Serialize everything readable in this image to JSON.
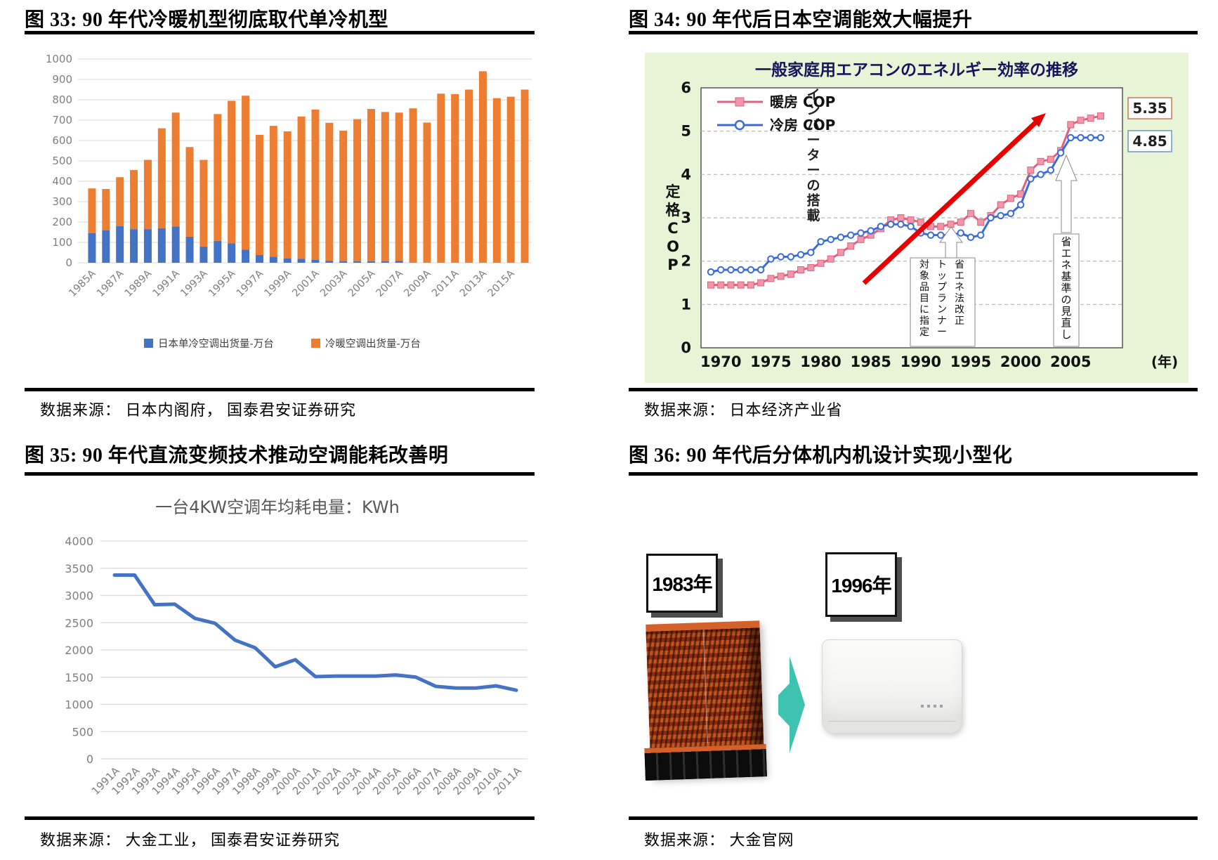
{
  "figures": {
    "fig33": {
      "title": "图 33:  90 年代冷暖机型彻底取代单冷机型",
      "source": "数据来源： 日本内阁府， 国泰君安证券研究"
    },
    "fig34": {
      "title": "图 34:  90 年代后日本空调能效大幅提升",
      "source": "数据来源： 日本经济产业省"
    },
    "fig35": {
      "title": "图 35:  90 年代直流变频技术推动空调能耗改善明",
      "source": "数据来源： 大金工业， 国泰君安证券研究"
    },
    "fig36": {
      "title": "图 36:  90 年代后分体机内机设计实现小型化",
      "source": "数据来源： 大金官网",
      "left_year": "1983年",
      "right_year": "1996年"
    }
  },
  "chart_data": [
    {
      "id": "chart33",
      "type": "bar",
      "stacked": true,
      "title": "",
      "categories": [
        "1985A",
        "1986A",
        "1987A",
        "1988A",
        "1989A",
        "1990A",
        "1991A",
        "1992A",
        "1993A",
        "1994A",
        "1995A",
        "1996A",
        "1997A",
        "1998A",
        "1999A",
        "2000A",
        "2001A",
        "2002A",
        "2003A",
        "2004A",
        "2005A",
        "2006A",
        "2007A",
        "2008A",
        "2009A",
        "2010A",
        "2011A",
        "2012A",
        "2013A",
        "2014A",
        "2015A",
        "2016A"
      ],
      "series": [
        {
          "name": "日本单冷空调出货量-万台",
          "color": "#4472C4",
          "values": [
            145,
            160,
            180,
            165,
            165,
            170,
            178,
            128,
            80,
            108,
            95,
            65,
            38,
            30,
            22,
            20,
            15,
            10,
            8,
            8,
            8,
            8,
            10,
            0,
            0,
            0,
            0,
            0,
            0,
            0,
            0,
            0
          ]
        },
        {
          "name": "冷暖空调出货量-万台",
          "color": "#ED7D31",
          "values": [
            220,
            202,
            240,
            290,
            340,
            490,
            559,
            440,
            425,
            622,
            700,
            755,
            590,
            642,
            623,
            698,
            737,
            677,
            640,
            697,
            747,
            732,
            727,
            758,
            688,
            830,
            828,
            850,
            940,
            808,
            815,
            850
          ]
        }
      ],
      "ylim": [
        0,
        1000
      ],
      "ytick_step": 100,
      "xtick_every": 2,
      "grid": true,
      "legend_position": "bottom"
    },
    {
      "id": "chart34",
      "type": "line",
      "title": "一般家庭用エアコンのエネルギー効率の推移",
      "ylabel": "定格COP",
      "x_unit": "(年)",
      "x_start": 1969,
      "xticks": [
        1970,
        1975,
        1980,
        1985,
        1990,
        1995,
        2000,
        2005
      ],
      "ylim": [
        0,
        6
      ],
      "bg": "#e7f4d5",
      "series": [
        {
          "name": "暖房 COP",
          "color": "#e0607f",
          "marker": "square",
          "end_label": "5.35",
          "values": [
            1.45,
            1.45,
            1.45,
            1.45,
            1.45,
            1.5,
            1.6,
            1.65,
            1.7,
            1.8,
            1.85,
            1.95,
            2.05,
            2.2,
            2.35,
            2.5,
            2.6,
            2.75,
            2.95,
            3.0,
            2.95,
            2.9,
            2.8,
            2.8,
            2.85,
            2.9,
            3.1,
            2.9,
            3.05,
            3.3,
            3.45,
            3.55,
            4.1,
            4.3,
            4.35,
            4.55,
            5.15,
            5.25,
            5.3,
            5.35
          ]
        },
        {
          "name": "冷房 COP",
          "color": "#3b6bd6",
          "marker": "circle",
          "end_label": "4.85",
          "values": [
            1.75,
            1.8,
            1.8,
            1.8,
            1.8,
            1.8,
            2.05,
            2.1,
            2.1,
            2.15,
            2.2,
            2.45,
            2.5,
            2.55,
            2.6,
            2.65,
            2.7,
            2.8,
            2.85,
            2.85,
            2.8,
            2.65,
            2.6,
            2.6,
            2.6,
            2.65,
            2.55,
            2.6,
            3.0,
            3.05,
            3.1,
            3.3,
            3.9,
            4.0,
            4.1,
            4.5,
            4.85,
            4.85,
            4.85,
            4.85
          ]
        }
      ],
      "annotations": {
        "inverter": "インバーターの搭載",
        "topranner_lines": [
          "省エネ法改正",
          "トップランナー",
          "対象品目に指定"
        ],
        "standard": "省エネ基準の見直し"
      }
    },
    {
      "id": "chart35",
      "type": "line",
      "title": "一台4KW空调年均耗电量：KWh",
      "color": "#4472C4",
      "categories": [
        "1991A",
        "1992A",
        "1993A",
        "1994A",
        "1995A",
        "1996A",
        "1997A",
        "1998A",
        "1999A",
        "2000A",
        "2001A",
        "2002A",
        "2003A",
        "2004A",
        "2005A",
        "2006A",
        "2007A",
        "2008A",
        "2009A",
        "2010A",
        "2011A"
      ],
      "values": [
        3375,
        3375,
        2830,
        2840,
        2580,
        2490,
        2180,
        2040,
        1690,
        1820,
        1510,
        1520,
        1520,
        1520,
        1540,
        1500,
        1330,
        1300,
        1300,
        1340,
        1260
      ],
      "ylim": [
        0,
        4000
      ],
      "ytick_step": 500,
      "grid": true
    }
  ]
}
